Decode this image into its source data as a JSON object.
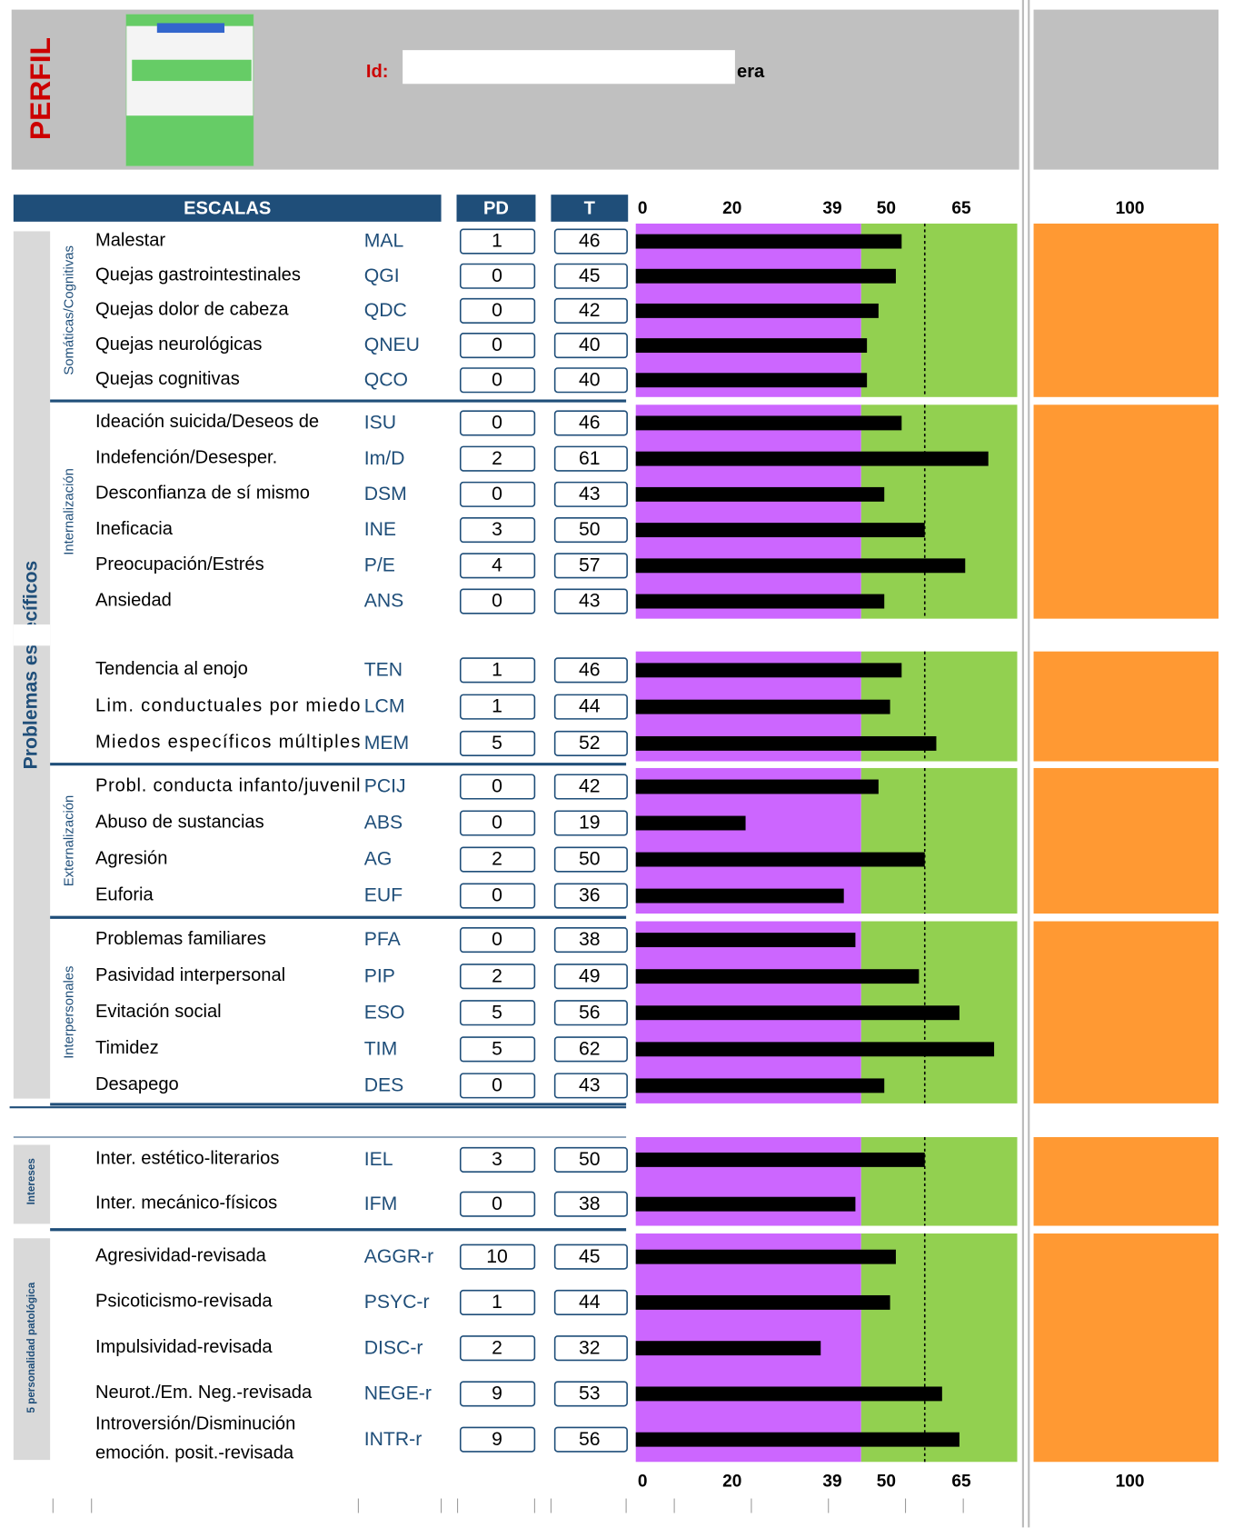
{
  "title": "PERFIL",
  "id_label": "Id:",
  "id_suffix": "era",
  "headers": {
    "scales": "ESCALAS",
    "pd": "PD",
    "t": "T"
  },
  "side_label": "Problemas específicos",
  "axis_ticks": [
    0,
    20,
    39,
    50,
    65,
    100
  ],
  "zones": [
    {
      "from": 0,
      "to": 39,
      "color": "#cc66ff"
    },
    {
      "from": 39,
      "to": 66,
      "color": "#92d050"
    }
  ],
  "cut_line": 50,
  "groups": [
    {
      "label": "Somáticas/Cognitivas",
      "rows": [
        {
          "name": "Malestar",
          "abbr": "MAL",
          "pd": 1,
          "t": 46
        },
        {
          "name": "Quejas gastrointestinales",
          "abbr": "QGI",
          "pd": 0,
          "t": 45
        },
        {
          "name": "Quejas dolor de cabeza",
          "abbr": "QDC",
          "pd": 0,
          "t": 42
        },
        {
          "name": "Quejas neurológicas",
          "abbr": "QNEU",
          "pd": 0,
          "t": 40
        },
        {
          "name": "Quejas cognitivas",
          "abbr": "QCO",
          "pd": 0,
          "t": 40
        }
      ]
    },
    {
      "label": "Internalización",
      "rows": [
        {
          "name": "Ideación suicida/Deseos de",
          "abbr": "ISU",
          "pd": 0,
          "t": 46
        },
        {
          "name": "Indefención/Desesper.",
          "abbr": "Im/D",
          "pd": 2,
          "t": 61
        },
        {
          "name": "Desconfianza de sí mismo",
          "abbr": "DSM",
          "pd": 0,
          "t": 43
        },
        {
          "name": "Ineficacia",
          "abbr": "INE",
          "pd": 3,
          "t": 50
        },
        {
          "name": "Preocupación/Estrés",
          "abbr": "P/E",
          "pd": 4,
          "t": 57
        },
        {
          "name": "Ansiedad",
          "abbr": "ANS",
          "pd": 0,
          "t": 43
        }
      ]
    },
    {
      "rows": [
        {
          "name": "Tendencia al enojo",
          "abbr": "TEN",
          "pd": 1,
          "t": 46
        },
        {
          "name": "Lim. conductuales por miedo",
          "abbr": "LCM",
          "pd": 1,
          "t": 44
        },
        {
          "name": "Miedos específicos múltiples",
          "abbr": "MEM",
          "pd": 5,
          "t": 52
        }
      ]
    },
    {
      "label": "Externalización",
      "rows": [
        {
          "name": "Probl. conducta infanto/juvenil",
          "abbr": "PCIJ",
          "pd": 0,
          "t": 42
        },
        {
          "name": "Abuso de sustancias",
          "abbr": "ABS",
          "pd": 0,
          "t": 19
        },
        {
          "name": "Agresión",
          "abbr": "AG",
          "pd": 2,
          "t": 50
        },
        {
          "name": "Euforia",
          "abbr": "EUF",
          "pd": 0,
          "t": 36
        }
      ]
    },
    {
      "label": "Interpersonales",
      "rows": [
        {
          "name": "Problemas familiares",
          "abbr": "PFA",
          "pd": 0,
          "t": 38
        },
        {
          "name": "Pasividad interpersonal",
          "abbr": "PIP",
          "pd": 2,
          "t": 49
        },
        {
          "name": "Evitación social",
          "abbr": "ESO",
          "pd": 5,
          "t": 56
        },
        {
          "name": "Timidez",
          "abbr": "TIM",
          "pd": 5,
          "t": 62
        },
        {
          "name": "Desapego",
          "abbr": "DES",
          "pd": 0,
          "t": 43
        }
      ]
    },
    {
      "label": "Intereses",
      "rows": [
        {
          "name": "Inter. estético-literarios",
          "abbr": "IEL",
          "pd": 3,
          "t": 50
        },
        {
          "name": "Inter. mecánico-físicos",
          "abbr": "IFM",
          "pd": 0,
          "t": 38
        }
      ]
    },
    {
      "label": "5 personalidad patológica",
      "rows": [
        {
          "name": "Agresividad-revisada",
          "abbr": "AGGR-r",
          "pd": 10,
          "t": 45
        },
        {
          "name": "Psicoticismo-revisada",
          "abbr": "PSYC-r",
          "pd": 1,
          "t": 44
        },
        {
          "name": "Impulsividad-revisada",
          "abbr": "DISC-r",
          "pd": 2,
          "t": 32
        },
        {
          "name": "Neurot./Em. Neg.-revisada",
          "abbr": "NEGE-r",
          "pd": 9,
          "t": 53
        },
        {
          "name_lines": [
            "Introversión/Disminución",
            "emoción.  posit.-revisada"
          ],
          "abbr": "INTR-r",
          "pd": 9,
          "t": 56
        }
      ]
    }
  ]
}
